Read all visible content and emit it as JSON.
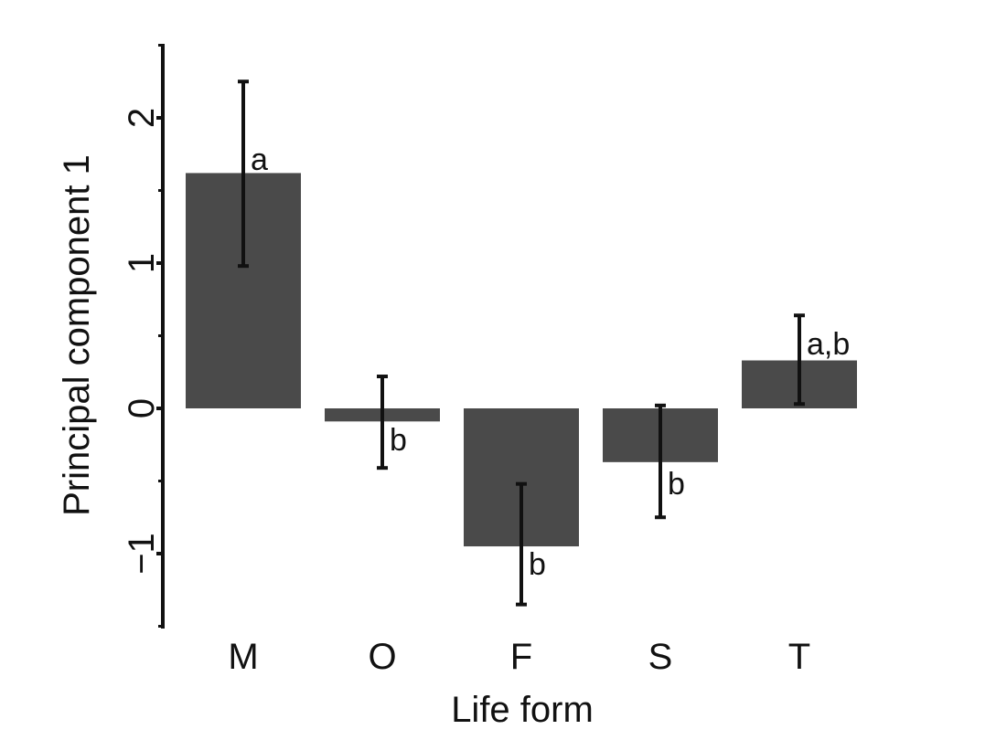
{
  "chart_data": {
    "type": "bar",
    "title": "",
    "xlabel": "Life form",
    "ylabel": "Principal component 1",
    "categories": [
      "M",
      "O",
      "F",
      "S",
      "T"
    ],
    "values": [
      1.62,
      -0.09,
      -0.95,
      -0.37,
      0.33
    ],
    "error_low": [
      0.98,
      -0.41,
      -1.35,
      -0.75,
      0.03
    ],
    "error_high": [
      2.25,
      0.22,
      -0.52,
      0.02,
      0.64
    ],
    "significance_labels": [
      "a",
      "b",
      "b",
      "b",
      "a,b"
    ],
    "ylim": [
      -1.5,
      2.5
    ],
    "yticks": [
      -1,
      0,
      1,
      2
    ],
    "ytick_labels": [
      "−1",
      "0",
      "1",
      "2"
    ],
    "grid": false,
    "colors": {
      "bar": "#4a4a4a",
      "error": "#111111",
      "axis": "#111111"
    }
  }
}
